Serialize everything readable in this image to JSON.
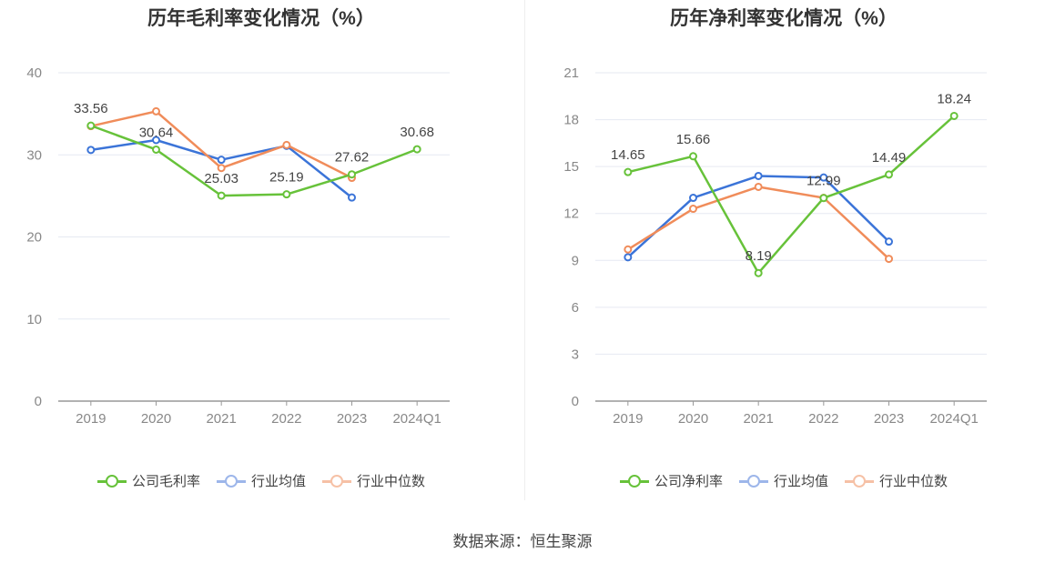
{
  "source": "数据来源：恒生聚源",
  "chart_data": [
    {
      "type": "line",
      "title": "历年毛利率变化情况（%）",
      "categories": [
        "2019",
        "2020",
        "2021",
        "2022",
        "2023",
        "2024Q1"
      ],
      "ylim": [
        0,
        40
      ],
      "yticks": [
        0,
        10,
        20,
        30,
        40
      ],
      "grid": true,
      "legend_position": "bottom",
      "series": [
        {
          "name": "公司毛利率",
          "color": "#67c23a",
          "labeled": true,
          "values": [
            33.56,
            30.64,
            25.03,
            25.19,
            27.62,
            30.68
          ]
        },
        {
          "name": "行业均值",
          "color": "#3b74d8",
          "labeled": false,
          "values": [
            30.6,
            31.8,
            29.4,
            31.1,
            24.8,
            null
          ]
        },
        {
          "name": "行业中位数",
          "color": "#f08c5a",
          "labeled": false,
          "values": [
            33.5,
            35.3,
            28.4,
            31.2,
            27.2,
            null
          ]
        }
      ]
    },
    {
      "type": "line",
      "title": "历年净利率变化情况（%）",
      "categories": [
        "2019",
        "2020",
        "2021",
        "2022",
        "2023",
        "2024Q1"
      ],
      "ylim": [
        0,
        21
      ],
      "yticks": [
        0,
        3,
        6,
        9,
        12,
        15,
        18,
        21
      ],
      "grid": true,
      "legend_position": "bottom",
      "series": [
        {
          "name": "公司净利率",
          "color": "#67c23a",
          "labeled": true,
          "values": [
            14.65,
            15.66,
            8.19,
            12.99,
            14.49,
            18.24
          ]
        },
        {
          "name": "行业均值",
          "color": "#3b74d8",
          "labeled": false,
          "values": [
            9.2,
            13.0,
            14.4,
            14.3,
            10.2,
            null
          ]
        },
        {
          "name": "行业中位数",
          "color": "#f08c5a",
          "labeled": false,
          "values": [
            9.7,
            12.3,
            13.7,
            13.0,
            9.1,
            null
          ]
        }
      ]
    }
  ]
}
